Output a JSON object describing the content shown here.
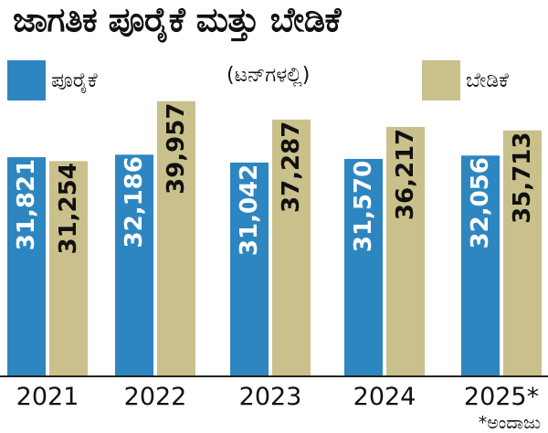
{
  "title": "ಜಾಗತಿಕ ಪೂರೈಕೆ ಮತ್ತು ಬೇಡಿಕೆ",
  "subtitle": "(ಟನ್‌ಗಳಲ್ಲಿ)",
  "footnote": "*ಅಂದಾಜು",
  "colors": {
    "supply": "#2e86c1",
    "demand": "#c9c08c",
    "axis": "#222222",
    "text": "#111111"
  },
  "chart_data": {
    "type": "bar",
    "title": "ಜಾಗತಿಕ ಪೂರೈಕೆ ಮತ್ತು ಬೇಡಿಕೆ",
    "subtitle": "(ಟನ್‌ಗಳಲ್ಲಿ)",
    "categories": [
      "2021",
      "2022",
      "2023",
      "2024",
      "2025*"
    ],
    "series": [
      {
        "name": "ಪೂರೈಕೆ",
        "values": [
          31821,
          32186,
          31042,
          31570,
          32056
        ],
        "labels": [
          "31,821",
          "32,186",
          "31,042",
          "31,570",
          "32,056"
        ]
      },
      {
        "name": "ಬೇಡಿಕೆ",
        "values": [
          31254,
          39957,
          37287,
          36217,
          35713
        ],
        "labels": [
          "31,254",
          "39,957",
          "37,287",
          "36,217",
          "35,713"
        ]
      }
    ],
    "legend_position": "top",
    "grid": false
  }
}
